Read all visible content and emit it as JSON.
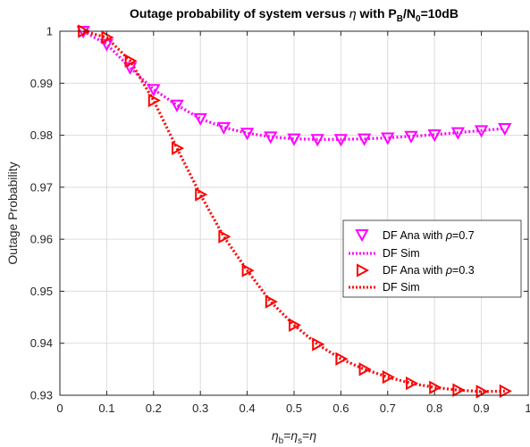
{
  "chart_data": {
    "type": "line",
    "title": {
      "prefix": "Outage probability of system versus ",
      "symbol": "η",
      "middle": " with P",
      "sub1": "B",
      "slash": "/N",
      "sub2": "0",
      "suffix": "=10dB"
    },
    "ylabel": "Outage Probability",
    "xlabel": {
      "a": "η",
      "a_sub": "b",
      "eq1": "=",
      "b": "η",
      "b_sub": "s",
      "eq2": "=",
      "c": "η"
    },
    "xlim": [
      0,
      1
    ],
    "ylim": [
      0.93,
      1.0
    ],
    "xticks": [
      "0",
      "0.1",
      "0.2",
      "0.3",
      "0.4",
      "0.5",
      "0.6",
      "0.7",
      "0.8",
      "0.9",
      "1"
    ],
    "yticks": [
      "0.93",
      "0.94",
      "0.95",
      "0.96",
      "0.97",
      "0.98",
      "0.99",
      "1"
    ],
    "grid": true,
    "legend_position": "right",
    "x": [
      0.05,
      0.1,
      0.15,
      0.2,
      0.25,
      0.3,
      0.35,
      0.4,
      0.45,
      0.5,
      0.55,
      0.6,
      0.65,
      0.7,
      0.75,
      0.8,
      0.85,
      0.9,
      0.95
    ],
    "series": [
      {
        "name": "DF Ana with ρ=0.7",
        "legend_prefix": "DF Ana with ",
        "legend_symbol": "ρ",
        "legend_suffix": "=0.7",
        "marker": "triangle-down",
        "color": "#FF00FF",
        "values": [
          1.0,
          0.9975,
          0.993,
          0.9888,
          0.9858,
          0.9832,
          0.9815,
          0.9804,
          0.9797,
          0.9793,
          0.9792,
          0.9792,
          0.9793,
          0.9795,
          0.9798,
          0.9801,
          0.9805,
          0.9809,
          0.9813
        ]
      },
      {
        "name": "DF Sim",
        "legend_label": "DF Sim",
        "line": "dotted",
        "color": "#FF00FF",
        "values": [
          1.0,
          0.9975,
          0.993,
          0.9888,
          0.9858,
          0.9832,
          0.9815,
          0.9804,
          0.9797,
          0.9793,
          0.9792,
          0.9792,
          0.9793,
          0.9795,
          0.9798,
          0.9801,
          0.9805,
          0.9809,
          0.9813
        ]
      },
      {
        "name": "DF Ana with ρ=0.3",
        "legend_prefix": "DF Ana with ",
        "legend_symbol": "ρ",
        "legend_suffix": "=0.3",
        "marker": "triangle-right",
        "color": "#FF0000",
        "values": [
          1.0,
          0.9988,
          0.9943,
          0.9867,
          0.9775,
          0.9686,
          0.9605,
          0.954,
          0.948,
          0.9435,
          0.9398,
          0.937,
          0.935,
          0.9335,
          0.9323,
          0.9315,
          0.931,
          0.9307,
          0.9308
        ]
      },
      {
        "name": "DF Sim",
        "legend_label": "DF Sim",
        "line": "dotted",
        "color": "#FF0000",
        "values": [
          1.0,
          0.9988,
          0.9943,
          0.9867,
          0.9775,
          0.9686,
          0.9605,
          0.954,
          0.948,
          0.9435,
          0.9398,
          0.937,
          0.935,
          0.9335,
          0.9323,
          0.9315,
          0.931,
          0.9307,
          0.9308
        ]
      }
    ]
  }
}
